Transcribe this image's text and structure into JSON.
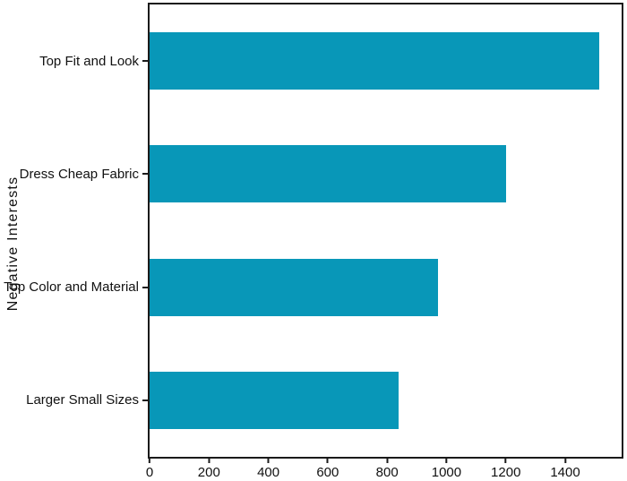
{
  "figure": {
    "background": "#ffffff",
    "spine_color": "#1a1a1a",
    "text_color": "#111111"
  },
  "chart_data": {
    "type": "bar",
    "orientation": "horizontal",
    "title": "",
    "xlabel": "",
    "ylabel": "Negative Interests",
    "categories": [
      "Top Fit and Look",
      "Dress Cheap Fabric",
      "Top Color and Material",
      "Larger Small Sizes"
    ],
    "values": [
      1515,
      1200,
      970,
      840
    ],
    "bar_color": "#0897b8",
    "bar_height_fraction": 0.5,
    "xlim": [
      0,
      1590
    ],
    "xticks": [
      0,
      200,
      400,
      600,
      800,
      1000,
      1200,
      1400
    ],
    "grid": false,
    "legend_position": "none"
  }
}
